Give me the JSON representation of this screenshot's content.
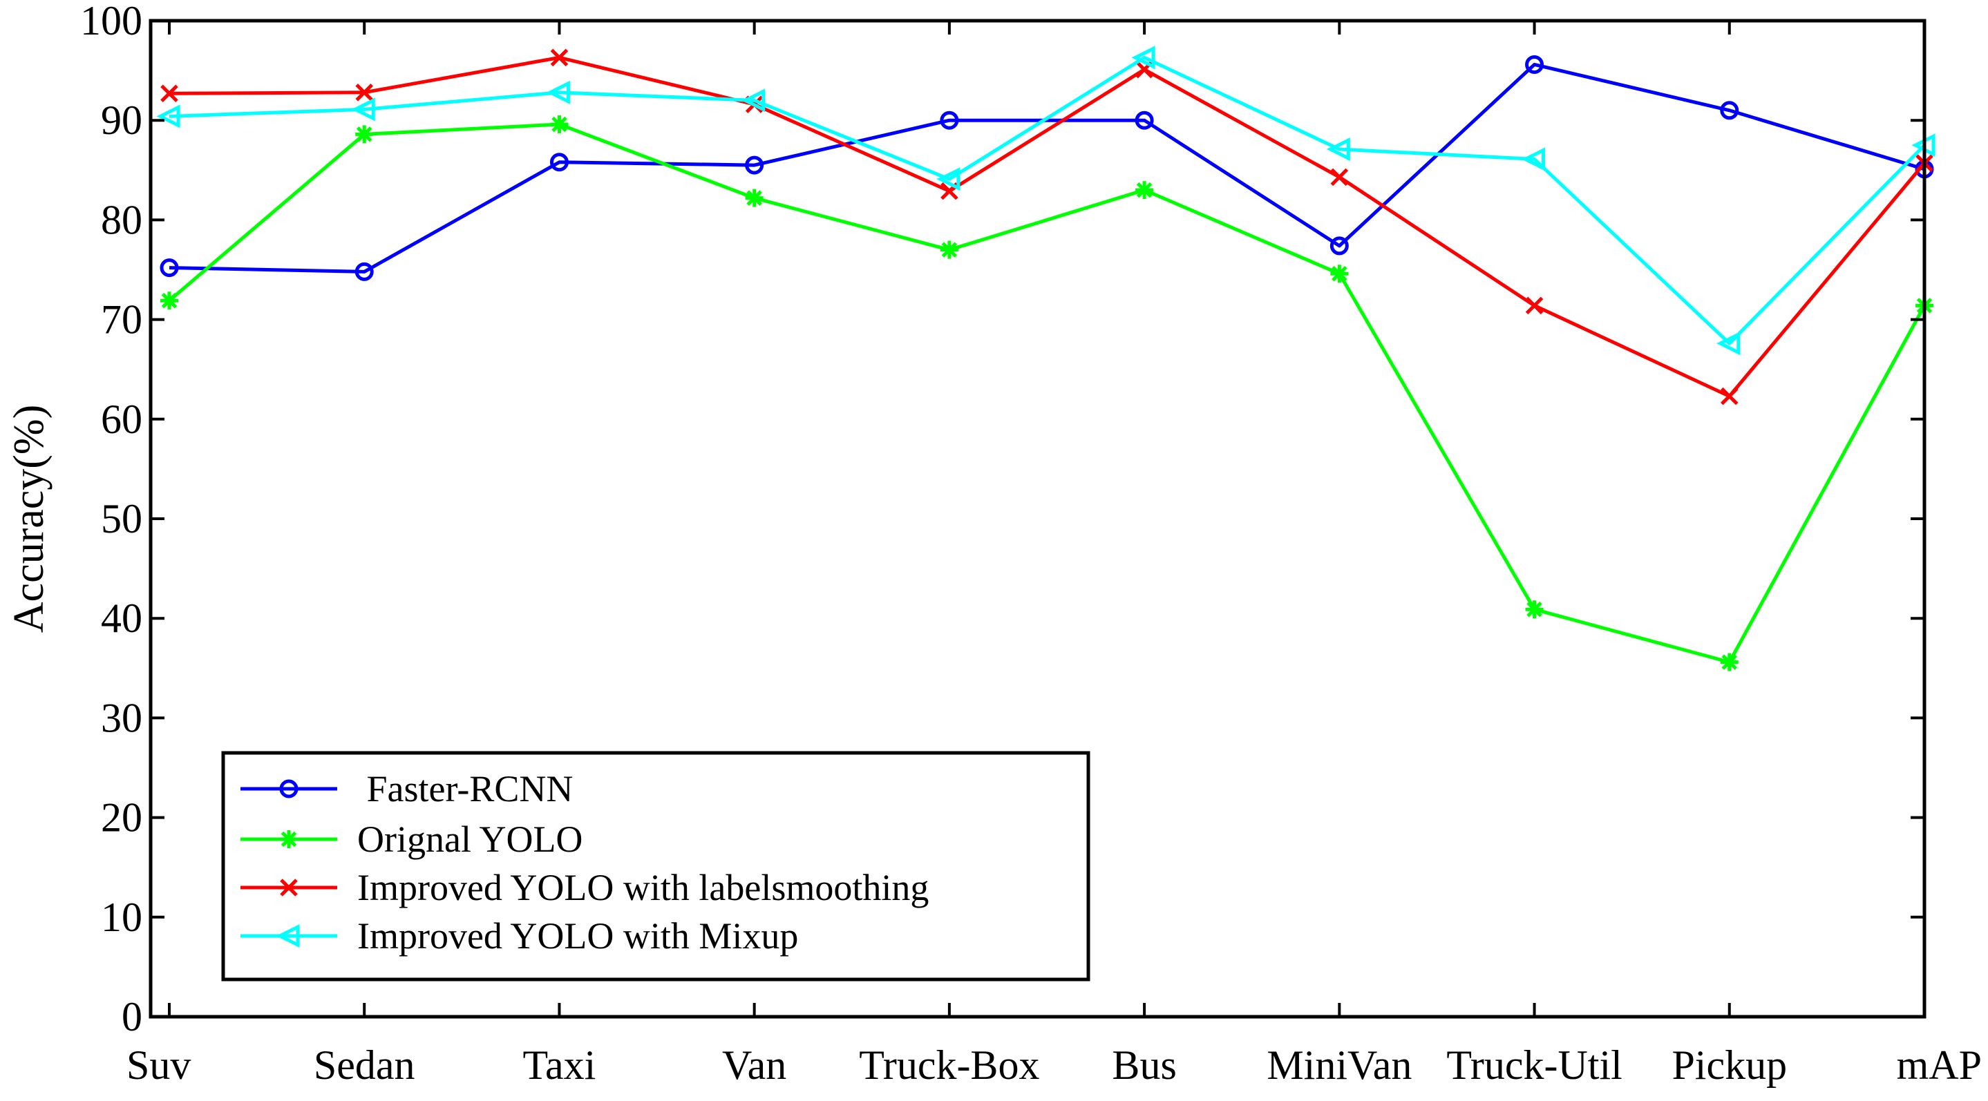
{
  "chart_data": {
    "type": "line",
    "title": "",
    "xlabel": "",
    "ylabel": "Accuracy(%)",
    "ylim": [
      0,
      100
    ],
    "yticks": [
      0,
      10,
      20,
      30,
      40,
      50,
      60,
      70,
      80,
      90,
      100
    ],
    "categories": [
      "Suv",
      "Sedan",
      "Taxi",
      "Van",
      "Truck-Box",
      "Bus",
      "MiniVan",
      "Truck-Util",
      "Pickup",
      "mAP"
    ],
    "grid": false,
    "legend_position": "bottom-left",
    "series": [
      {
        "name": " Faster-RCNN",
        "color": "#0000ff",
        "marker": "circle",
        "values": [
          75.2,
          74.8,
          85.8,
          85.5,
          90.0,
          90.0,
          77.4,
          95.6,
          91.0,
          85.1
        ]
      },
      {
        "name": "Orignal YOLO",
        "color": "#00ff00",
        "marker": "asterisk",
        "values": [
          71.9,
          88.6,
          89.6,
          82.2,
          77.0,
          83.0,
          74.6,
          40.9,
          35.6,
          71.4
        ]
      },
      {
        "name": "Improved YOLO with labelsmoothing",
        "color": "#ff0000",
        "marker": "x",
        "values": [
          92.7,
          92.8,
          96.3,
          91.6,
          82.9,
          95.1,
          84.3,
          71.4,
          62.3,
          85.7
        ]
      },
      {
        "name": "Improved YOLO with Mixup",
        "color": "#00ffff",
        "marker": "triangle-left",
        "values": [
          90.4,
          91.1,
          92.8,
          92.0,
          84.1,
          96.3,
          87.1,
          86.1,
          67.6,
          87.5
        ]
      }
    ]
  }
}
